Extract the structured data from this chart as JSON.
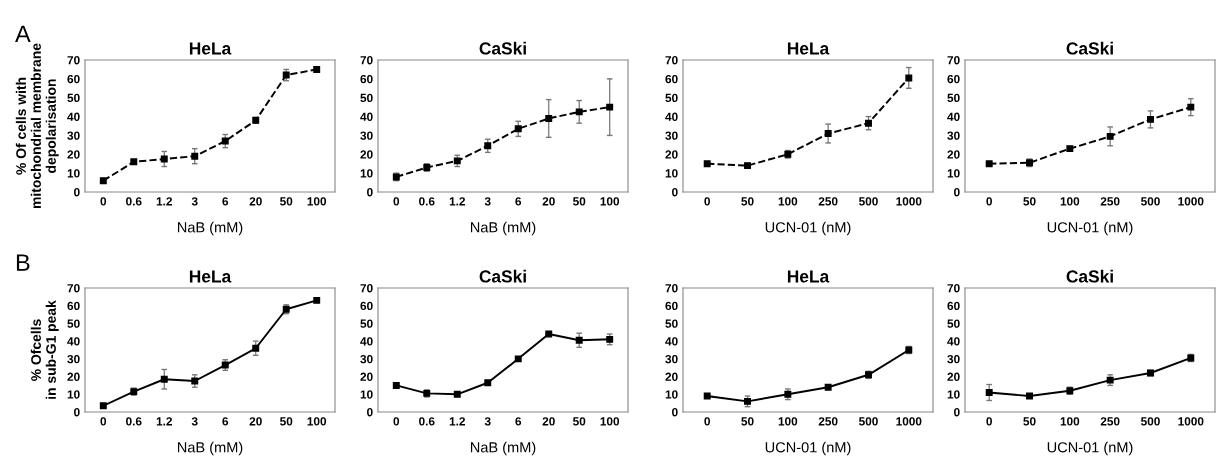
{
  "chart_data": [
    {
      "type": "line",
      "title": "HeLa",
      "xlabel": "NaB (mM)",
      "ylabel": "% Of cells with\nmitochondrial membrane\ndepolarisation",
      "annotations": [
        "A"
      ],
      "categories": [
        "0",
        "0.6",
        "1.2",
        "3",
        "6",
        "20",
        "50",
        "100"
      ],
      "series": [
        {
          "color": "#000000",
          "values": [
            6,
            16,
            17.5,
            19,
            27,
            38,
            62,
            65
          ],
          "errors": [
            1,
            1,
            4,
            4,
            3.5,
            1.5,
            3,
            1
          ]
        }
      ],
      "ylim": [
        0,
        70
      ],
      "yticks": [
        0,
        10,
        20,
        30,
        40,
        50,
        60,
        70
      ],
      "marker": "square",
      "line_style": "dashed",
      "grid": false,
      "legend": false
    },
    {
      "type": "line",
      "title": "CaSki",
      "xlabel": "NaB (mM)",
      "categories": [
        "0",
        "0.6",
        "1.2",
        "3",
        "6",
        "20",
        "50",
        "100"
      ],
      "series": [
        {
          "color": "#000000",
          "values": [
            8,
            13,
            16.5,
            24.5,
            33.5,
            39,
            42.5,
            45
          ],
          "errors": [
            2,
            2,
            3,
            3.5,
            4,
            10,
            6,
            15
          ]
        }
      ],
      "ylim": [
        0,
        70
      ],
      "yticks": [
        0,
        10,
        20,
        30,
        40,
        50,
        60,
        70
      ],
      "marker": "square",
      "line_style": "dashed",
      "grid": false,
      "legend": false
    },
    {
      "type": "line",
      "title": "HeLa",
      "xlabel": "UCN-01 (nM)",
      "categories": [
        "0",
        "50",
        "100",
        "250",
        "500",
        "1000"
      ],
      "series": [
        {
          "color": "#000000",
          "values": [
            15,
            14,
            20,
            31,
            36.5,
            60.5
          ],
          "errors": [
            1,
            1,
            2,
            5,
            3.5,
            5.5
          ]
        }
      ],
      "ylim": [
        0,
        70
      ],
      "yticks": [
        0,
        10,
        20,
        30,
        40,
        50,
        60,
        70
      ],
      "marker": "square",
      "line_style": "dashed",
      "grid": false,
      "legend": false
    },
    {
      "type": "line",
      "title": "CaSki",
      "xlabel": "UCN-01 (nM)",
      "categories": [
        "0",
        "50",
        "100",
        "250",
        "500",
        "1000"
      ],
      "series": [
        {
          "color": "#000000",
          "values": [
            15,
            15.5,
            23,
            29.5,
            38.5,
            45
          ],
          "errors": [
            1,
            2,
            1,
            5,
            4.5,
            4.5
          ]
        }
      ],
      "ylim": [
        0,
        70
      ],
      "yticks": [
        0,
        10,
        20,
        30,
        40,
        50,
        60,
        70
      ],
      "marker": "square",
      "line_style": "dashed",
      "grid": false,
      "legend": false
    },
    {
      "type": "line",
      "title": "HeLa",
      "xlabel": "NaB (mM)",
      "ylabel": "% Ofcells\nin sub-G1 peak",
      "annotations": [
        "B"
      ],
      "categories": [
        "0",
        "0.6",
        "1.2",
        "3",
        "6",
        "20",
        "50",
        "100"
      ],
      "series": [
        {
          "color": "#000000",
          "values": [
            3.5,
            11.5,
            18.5,
            17.5,
            26.5,
            36,
            58,
            63
          ],
          "errors": [
            1,
            2,
            5.5,
            3.5,
            3,
            4,
            2.5,
            1
          ]
        }
      ],
      "ylim": [
        0,
        70
      ],
      "yticks": [
        0,
        10,
        20,
        30,
        40,
        50,
        60,
        70
      ],
      "marker": "square",
      "line_style": "solid",
      "grid": false,
      "legend": false
    },
    {
      "type": "line",
      "title": "CaSki",
      "xlabel": "NaB (mM)",
      "categories": [
        "0",
        "0.6",
        "1.2",
        "3",
        "6",
        "20",
        "50",
        "100"
      ],
      "series": [
        {
          "color": "#000000",
          "values": [
            15,
            10.5,
            10,
            16.5,
            30,
            44,
            40.5,
            41
          ],
          "errors": [
            1,
            2,
            1,
            1,
            1,
            1,
            4,
            3
          ]
        }
      ],
      "ylim": [
        0,
        70
      ],
      "yticks": [
        0,
        10,
        20,
        30,
        40,
        50,
        60,
        70
      ],
      "marker": "square",
      "line_style": "solid",
      "grid": false,
      "legend": false
    },
    {
      "type": "line",
      "title": "HeLa",
      "xlabel": "UCN-01 (nM)",
      "categories": [
        "0",
        "50",
        "100",
        "250",
        "500",
        "1000"
      ],
      "series": [
        {
          "color": "#000000",
          "values": [
            9,
            6,
            10,
            14,
            21,
            35
          ],
          "errors": [
            1,
            3,
            3,
            1,
            2,
            2
          ]
        }
      ],
      "ylim": [
        0,
        70
      ],
      "yticks": [
        0,
        10,
        20,
        30,
        40,
        50,
        60,
        70
      ],
      "marker": "square",
      "line_style": "solid",
      "grid": false,
      "legend": false
    },
    {
      "type": "line",
      "title": "CaSki",
      "xlabel": "UCN-01 (nM)",
      "categories": [
        "0",
        "50",
        "100",
        "250",
        "500",
        "1000"
      ],
      "series": [
        {
          "color": "#000000",
          "values": [
            11,
            9,
            12,
            18,
            22,
            30.5
          ],
          "errors": [
            4.5,
            1,
            2,
            3,
            1.5,
            2
          ]
        }
      ],
      "ylim": [
        0,
        70
      ],
      "yticks": [
        0,
        10,
        20,
        30,
        40,
        50,
        60,
        70
      ],
      "marker": "square",
      "line_style": "solid",
      "grid": false,
      "legend": false
    }
  ]
}
